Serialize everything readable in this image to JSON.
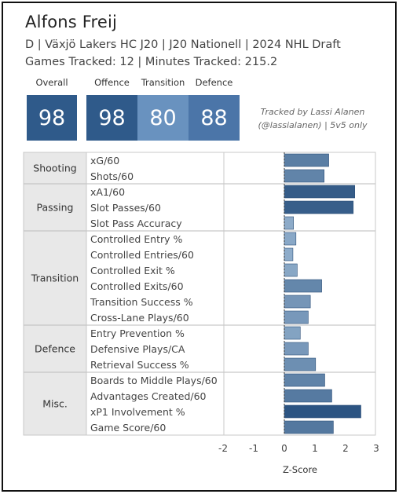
{
  "player": {
    "name": "Alfons Freij",
    "line1": "D | Växjö Lakers HC J20 | J20 Nationell | 2024 NHL Draft",
    "line2": "Games Tracked: 12 | Minutes Tracked: 215.2"
  },
  "ratings": {
    "overall": {
      "label": "Overall",
      "value": "98"
    },
    "offence": {
      "label": "Offence",
      "value": "98"
    },
    "transition": {
      "label": "Transition",
      "value": "80"
    },
    "defence": {
      "label": "Defence",
      "value": "88"
    }
  },
  "credit": {
    "line1": "Tracked by Lassi Alanen",
    "line2": "(@lassialanen) | 5v5 only"
  },
  "colors": {
    "overall": "#2f5a8a",
    "offence": "#2f5a8a",
    "transition": "#6992bf",
    "defence": "#4b75a8"
  },
  "chart_data": {
    "type": "bar",
    "orientation": "horizontal",
    "xlabel": "Z-Score",
    "xlim": [
      -2,
      3
    ],
    "xticks": [
      "-2",
      "-1",
      "0",
      "1",
      "2",
      "3"
    ],
    "groups": [
      {
        "name": "Shooting",
        "metrics": [
          {
            "label": "xG/60",
            "value": 1.45
          },
          {
            "label": "Shots/60",
            "value": 1.3
          }
        ]
      },
      {
        "name": "Passing",
        "metrics": [
          {
            "label": "xA1/60",
            "value": 2.3
          },
          {
            "label": "Slot Passes/60",
            "value": 2.25
          },
          {
            "label": "Slot Pass Accuracy",
            "value": 0.3
          }
        ]
      },
      {
        "name": "Transition",
        "metrics": [
          {
            "label": "Controlled Entry %",
            "value": 0.38
          },
          {
            "label": "Controlled Entries/60",
            "value": 0.28
          },
          {
            "label": "Controlled Exit %",
            "value": 0.42
          },
          {
            "label": "Controlled Exits/60",
            "value": 1.22
          },
          {
            "label": "Transition Success %",
            "value": 0.85
          },
          {
            "label": "Cross-Lane Plays/60",
            "value": 0.78
          }
        ]
      },
      {
        "name": "Defence",
        "metrics": [
          {
            "label": "Entry Prevention %",
            "value": 0.52
          },
          {
            "label": "Defensive Plays/CA",
            "value": 0.78
          },
          {
            "label": "Retrieval Success %",
            "value": 1.02
          }
        ]
      },
      {
        "name": "Misc.",
        "metrics": [
          {
            "label": "Boards to Middle Plays/60",
            "value": 1.32
          },
          {
            "label": "Advantages Created/60",
            "value": 1.55
          },
          {
            "label": "xP1 Involvement %",
            "value": 2.5
          },
          {
            "label": "Game Score/60",
            "value": 1.6
          }
        ]
      }
    ]
  }
}
